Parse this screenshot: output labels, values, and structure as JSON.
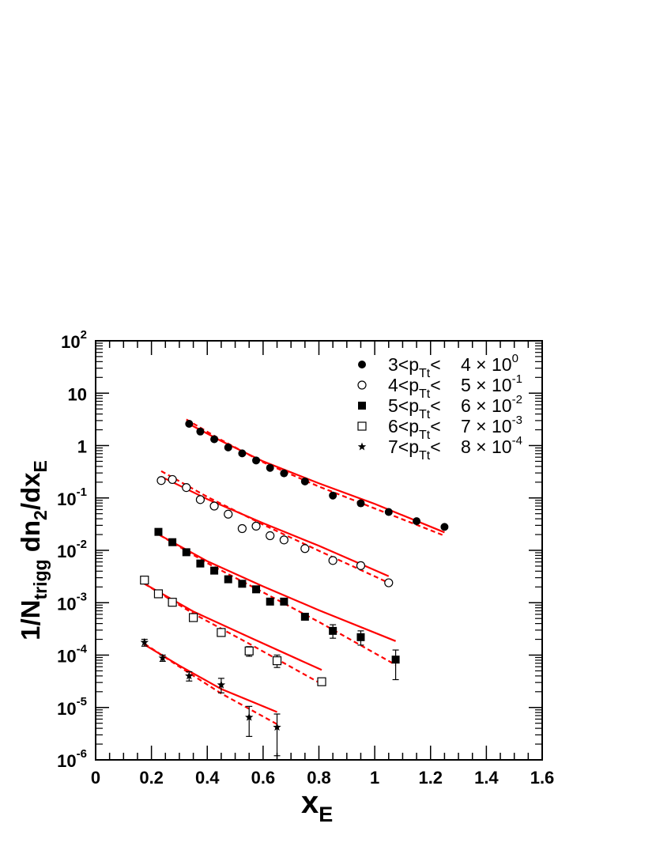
{
  "chart_data": {
    "type": "scatter",
    "title": "",
    "xlabel": {
      "main": "x",
      "sub": "E"
    },
    "ylabel": {
      "p1": "1/N",
      "s1": "trigg",
      "p2": " dn",
      "s2": "2",
      "p3": "/dx",
      "s3": "E"
    },
    "xlim": [
      0,
      1.6
    ],
    "ylim": [
      1e-06,
      100
    ],
    "yscale": "log",
    "grid": false,
    "legend_position": "top-right",
    "x_ticks": [
      {
        "value": 0,
        "label": "0"
      },
      {
        "value": 0.2,
        "label": "0.2"
      },
      {
        "value": 0.4,
        "label": "0.4"
      },
      {
        "value": 0.6,
        "label": "0.6"
      },
      {
        "value": 0.8,
        "label": "0.8"
      },
      {
        "value": 1.0,
        "label": "1"
      },
      {
        "value": 1.2,
        "label": "1.2"
      },
      {
        "value": 1.4,
        "label": "1.4"
      },
      {
        "value": 1.6,
        "label": "1.6"
      }
    ],
    "y_ticks": [
      {
        "value": 100,
        "base": "10",
        "exp": "2"
      },
      {
        "value": 10,
        "base": "10",
        "exp": ""
      },
      {
        "value": 1,
        "base": "1",
        "exp": ""
      },
      {
        "value": 0.1,
        "base": "10",
        "exp": "-1"
      },
      {
        "value": 0.01,
        "base": "10",
        "exp": "-2"
      },
      {
        "value": 0.001,
        "base": "10",
        "exp": "-3"
      },
      {
        "value": 0.0001,
        "base": "10",
        "exp": "-4"
      },
      {
        "value": 1e-05,
        "base": "10",
        "exp": "-5"
      },
      {
        "value": 1e-06,
        "base": "10",
        "exp": "-6"
      }
    ],
    "series": [
      {
        "marker": "filled-circle",
        "legend": {
          "range": "3<p",
          "sub": "Tt",
          "lt": "< ",
          "factor": "4 × 10",
          "exp": "0"
        },
        "points": [
          {
            "x": 0.335,
            "y": 2.6
          },
          {
            "x": 0.375,
            "y": 1.85
          },
          {
            "x": 0.425,
            "y": 1.32
          },
          {
            "x": 0.475,
            "y": 0.92
          },
          {
            "x": 0.525,
            "y": 0.71
          },
          {
            "x": 0.575,
            "y": 0.52
          },
          {
            "x": 0.625,
            "y": 0.375
          },
          {
            "x": 0.675,
            "y": 0.295
          },
          {
            "x": 0.75,
            "y": 0.207
          },
          {
            "x": 0.85,
            "y": 0.111
          },
          {
            "x": 0.95,
            "y": 0.079
          },
          {
            "x": 1.05,
            "y": 0.054
          },
          {
            "x": 1.15,
            "y": 0.036
          },
          {
            "x": 1.25,
            "y": 0.028
          }
        ],
        "fit_solid": [
          {
            "x": 0.325,
            "y": 2.75
          },
          {
            "x": 0.45,
            "y": 1.22
          },
          {
            "x": 0.6,
            "y": 0.5
          },
          {
            "x": 0.8,
            "y": 0.19
          },
          {
            "x": 1.0,
            "y": 0.077
          },
          {
            "x": 1.25,
            "y": 0.022
          }
        ],
        "fit_dashed": [
          {
            "x": 0.325,
            "y": 3.15
          },
          {
            "x": 0.45,
            "y": 1.28
          },
          {
            "x": 0.6,
            "y": 0.48
          },
          {
            "x": 0.8,
            "y": 0.165
          },
          {
            "x": 1.0,
            "y": 0.063
          },
          {
            "x": 1.25,
            "y": 0.019
          }
        ]
      },
      {
        "marker": "open-circle",
        "legend": {
          "range": "4<p",
          "sub": "Tt",
          "lt": "< ",
          "factor": "5 × 10",
          "exp": "-1"
        },
        "points": [
          {
            "x": 0.235,
            "y": 0.215
          },
          {
            "x": 0.275,
            "y": 0.225
          },
          {
            "x": 0.325,
            "y": 0.158
          },
          {
            "x": 0.375,
            "y": 0.093
          },
          {
            "x": 0.425,
            "y": 0.07
          },
          {
            "x": 0.475,
            "y": 0.049
          },
          {
            "x": 0.525,
            "y": 0.026
          },
          {
            "x": 0.575,
            "y": 0.029
          },
          {
            "x": 0.625,
            "y": 0.019
          },
          {
            "x": 0.675,
            "y": 0.0158
          },
          {
            "x": 0.75,
            "y": 0.0108
          },
          {
            "x": 0.85,
            "y": 0.0064
          },
          {
            "x": 0.95,
            "y": 0.0051
          },
          {
            "x": 1.05,
            "y": 0.0024
          }
        ],
        "fit_solid": [
          {
            "x": 0.235,
            "y": 0.255
          },
          {
            "x": 0.4,
            "y": 0.095
          },
          {
            "x": 0.6,
            "y": 0.033
          },
          {
            "x": 0.8,
            "y": 0.0122
          },
          {
            "x": 1.05,
            "y": 0.0032
          }
        ],
        "fit_dashed": [
          {
            "x": 0.235,
            "y": 0.325
          },
          {
            "x": 0.4,
            "y": 0.105
          },
          {
            "x": 0.6,
            "y": 0.031
          },
          {
            "x": 0.8,
            "y": 0.0098
          },
          {
            "x": 1.05,
            "y": 0.0024
          }
        ]
      },
      {
        "marker": "filled-square",
        "legend": {
          "range": "5<p",
          "sub": "Tt",
          "lt": "< ",
          "factor": "6 × 10",
          "exp": "-2"
        },
        "points": [
          {
            "x": 0.225,
            "y": 0.0225
          },
          {
            "x": 0.275,
            "y": 0.0143
          },
          {
            "x": 0.325,
            "y": 0.0092
          },
          {
            "x": 0.375,
            "y": 0.0056
          },
          {
            "x": 0.425,
            "y": 0.0041
          },
          {
            "x": 0.475,
            "y": 0.0028
          },
          {
            "x": 0.525,
            "y": 0.0023
          },
          {
            "x": 0.575,
            "y": 0.0018
          },
          {
            "x": 0.625,
            "y": 0.00105
          },
          {
            "x": 0.675,
            "y": 0.00105
          },
          {
            "x": 0.75,
            "y": 0.00054
          },
          {
            "x": 0.85,
            "y": 0.00029,
            "err": [
              0.00021,
              0.00038
            ]
          },
          {
            "x": 0.95,
            "y": 0.00022,
            "err": [
              0.000155,
              0.00029
            ]
          },
          {
            "x": 1.075,
            "y": 8.2e-05,
            "err": [
              3.4e-05,
              0.000125
            ]
          }
        ],
        "fit_solid": [
          {
            "x": 0.23,
            "y": 0.0195
          },
          {
            "x": 0.4,
            "y": 0.0062
          },
          {
            "x": 0.6,
            "y": 0.00205
          },
          {
            "x": 0.8,
            "y": 0.00072
          },
          {
            "x": 1.075,
            "y": 0.000185
          }
        ],
        "fit_dashed": [
          {
            "x": 0.23,
            "y": 0.0195
          },
          {
            "x": 0.4,
            "y": 0.0057
          },
          {
            "x": 0.6,
            "y": 0.00158
          },
          {
            "x": 0.8,
            "y": 0.00043
          },
          {
            "x": 1.075,
            "y": 6.5e-05
          }
        ]
      },
      {
        "marker": "open-square",
        "legend": {
          "range": "6<p",
          "sub": "Tt",
          "lt": "< ",
          "factor": "7 × 10",
          "exp": "-3"
        },
        "points": [
          {
            "x": 0.175,
            "y": 0.0027
          },
          {
            "x": 0.225,
            "y": 0.00148
          },
          {
            "x": 0.275,
            "y": 0.00102
          },
          {
            "x": 0.35,
            "y": 0.00052
          },
          {
            "x": 0.45,
            "y": 0.00027
          },
          {
            "x": 0.55,
            "y": 0.00012,
            "err": [
              9.5e-05,
              0.000145
            ]
          },
          {
            "x": 0.65,
            "y": 7.8e-05,
            "err": [
              5.8e-05,
              0.0001
            ]
          },
          {
            "x": 0.81,
            "y": 3.1e-05
          }
        ],
        "fit_solid": [
          {
            "x": 0.175,
            "y": 0.0023
          },
          {
            "x": 0.35,
            "y": 0.00068
          },
          {
            "x": 0.55,
            "y": 0.00022
          },
          {
            "x": 0.81,
            "y": 5.2e-05
          }
        ],
        "fit_dashed": [
          {
            "x": 0.175,
            "y": 0.0023
          },
          {
            "x": 0.35,
            "y": 0.00062
          },
          {
            "x": 0.55,
            "y": 0.000165
          },
          {
            "x": 0.81,
            "y": 2.8e-05
          }
        ]
      },
      {
        "marker": "star",
        "legend": {
          "range": "7<p",
          "sub": "Tt",
          "lt": "< ",
          "factor": "8 × 10",
          "exp": "-4"
        },
        "points": [
          {
            "x": 0.175,
            "y": 0.000175,
            "err": [
              0.000148,
              0.0002
            ]
          },
          {
            "x": 0.24,
            "y": 8.8e-05,
            "err": [
              7.6e-05,
              0.0001
            ]
          },
          {
            "x": 0.335,
            "y": 4e-05,
            "err": [
              3.2e-05,
              4.8e-05
            ]
          },
          {
            "x": 0.45,
            "y": 2.7e-05,
            "err": [
              1.9e-05,
              3.6e-05
            ]
          },
          {
            "x": 0.55,
            "y": 6.5e-06,
            "err": [
              2.8e-06,
              1.05e-05
            ]
          },
          {
            "x": 0.65,
            "y": 4.2e-06,
            "err": [
              1.2e-06,
              7.5e-06
            ]
          }
        ],
        "fit_solid": [
          {
            "x": 0.175,
            "y": 0.000158
          },
          {
            "x": 0.3,
            "y": 6.3e-05
          },
          {
            "x": 0.45,
            "y": 2.25e-05
          },
          {
            "x": 0.65,
            "y": 8.2e-06
          }
        ],
        "fit_dashed": [
          {
            "x": 0.175,
            "y": 0.000165
          },
          {
            "x": 0.3,
            "y": 6e-05
          },
          {
            "x": 0.45,
            "y": 1.85e-05
          },
          {
            "x": 0.65,
            "y": 4.8e-06
          }
        ]
      }
    ],
    "colors": {
      "fit": "#ff0000",
      "marker": "#000000",
      "axis": "#000000"
    }
  }
}
